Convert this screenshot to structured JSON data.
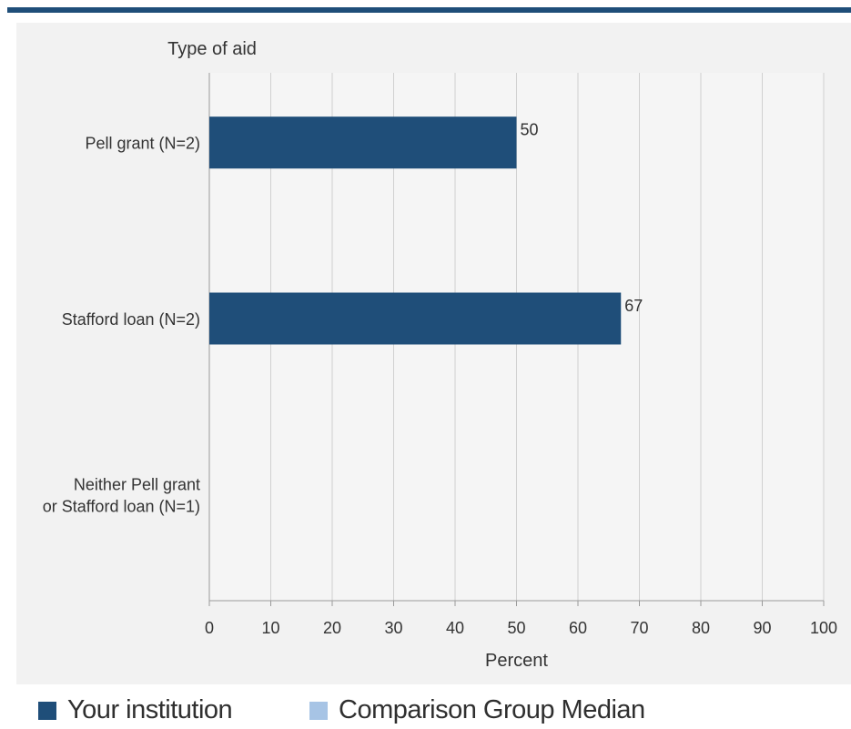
{
  "chart_data": {
    "type": "bar",
    "orientation": "horizontal",
    "y_axis_title": "Type of aid",
    "xlabel": "Percent",
    "xlim": [
      0,
      100
    ],
    "xticks": [
      0,
      10,
      20,
      30,
      40,
      50,
      60,
      70,
      80,
      90,
      100
    ],
    "grid": true,
    "categories": [
      [
        "Pell grant  (N=2)"
      ],
      [
        "Stafford loan (N=2)"
      ],
      [
        "Neither Pell grant",
        "or Stafford loan (N=1)"
      ]
    ],
    "series": [
      {
        "name": "Your institution",
        "color": "#1f4e79",
        "values": [
          50,
          67,
          null
        ]
      },
      {
        "name": "Comparison Group Median",
        "color": "#a7c4e5",
        "values": [
          null,
          null,
          null
        ]
      }
    ],
    "data_labels": [
      "50",
      "67",
      ""
    ],
    "legend_position": "bottom"
  }
}
